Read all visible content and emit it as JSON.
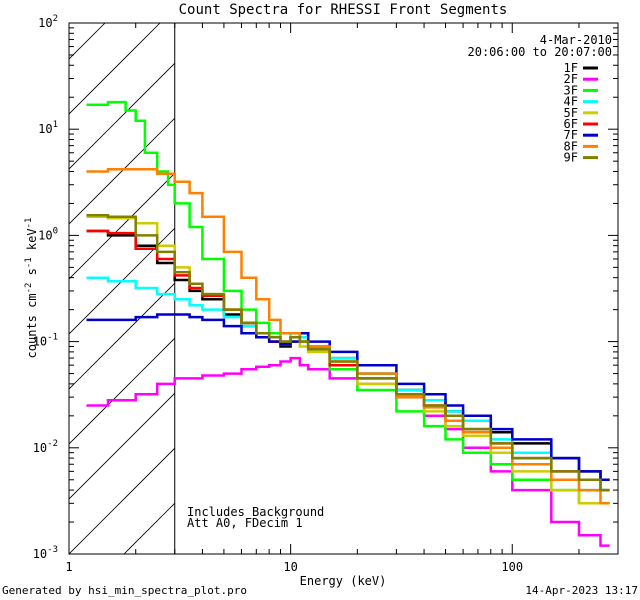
{
  "chart_data": {
    "type": "line",
    "title": "Count Spectra for RHESSI Front Segments",
    "xlabel": "Energy (keV)",
    "ylabel": "counts cm^-2 s^-1 keV^-1",
    "ylabel_parts": [
      "counts cm",
      "-2",
      " s",
      "-1",
      " keV",
      "-1"
    ],
    "x_scale": "log",
    "y_scale": "log",
    "xlim": [
      1,
      300
    ],
    "ylim": [
      0.001,
      100
    ],
    "x_ticks": [
      {
        "value": 1,
        "label": "1"
      },
      {
        "value": 10,
        "label": "10"
      },
      {
        "value": 100,
        "label": "100"
      }
    ],
    "y_ticks": [
      {
        "value": 100,
        "base": "10",
        "exp": "2"
      },
      {
        "value": 10,
        "base": "10",
        "exp": "1"
      },
      {
        "value": 1,
        "base": "10",
        "exp": "0"
      },
      {
        "value": 0.1,
        "base": "10",
        "exp": "-1"
      },
      {
        "value": 0.01,
        "base": "10",
        "exp": "-2"
      },
      {
        "value": 0.001,
        "base": "10",
        "exp": "-3"
      }
    ],
    "date_label": "4-Mar-2010",
    "time_range_label": "20:06:00 to 20:07:00",
    "hatched_region_max_kev": 3,
    "annotations": [
      "Includes Background",
      "Att A0, FDecim 1"
    ],
    "series": [
      {
        "name": "1F",
        "color": "#000000",
        "points": [
          [
            1.2,
            1.1
          ],
          [
            1.5,
            1.0
          ],
          [
            2,
            0.8
          ],
          [
            2.5,
            0.55
          ],
          [
            3,
            0.38
          ],
          [
            3.5,
            0.3
          ],
          [
            4,
            0.25
          ],
          [
            5,
            0.18
          ],
          [
            6,
            0.14
          ],
          [
            7,
            0.11
          ],
          [
            8,
            0.1
          ],
          [
            9,
            0.09
          ],
          [
            10,
            0.1
          ],
          [
            11,
            0.12
          ],
          [
            12,
            0.09
          ],
          [
            15,
            0.07
          ],
          [
            20,
            0.05
          ],
          [
            30,
            0.035
          ],
          [
            40,
            0.028
          ],
          [
            50,
            0.022
          ],
          [
            60,
            0.018
          ],
          [
            80,
            0.014
          ],
          [
            100,
            0.011
          ],
          [
            150,
            0.008
          ],
          [
            200,
            0.006
          ],
          [
            250,
            0.005
          ]
        ]
      },
      {
        "name": "2F",
        "color": "#ff00ff",
        "points": [
          [
            1.2,
            0.025
          ],
          [
            1.5,
            0.028
          ],
          [
            2,
            0.032
          ],
          [
            2.5,
            0.04
          ],
          [
            3,
            0.045
          ],
          [
            3.5,
            0.045
          ],
          [
            4,
            0.048
          ],
          [
            5,
            0.05
          ],
          [
            6,
            0.055
          ],
          [
            7,
            0.058
          ],
          [
            8,
            0.06
          ],
          [
            9,
            0.065
          ],
          [
            10,
            0.07
          ],
          [
            11,
            0.06
          ],
          [
            12,
            0.055
          ],
          [
            15,
            0.045
          ],
          [
            20,
            0.04
          ],
          [
            30,
            0.03
          ],
          [
            40,
            0.02
          ],
          [
            50,
            0.015
          ],
          [
            60,
            0.01
          ],
          [
            80,
            0.006
          ],
          [
            100,
            0.004
          ],
          [
            150,
            0.002
          ],
          [
            200,
            0.0015
          ],
          [
            250,
            0.0012
          ]
        ]
      },
      {
        "name": "3F",
        "color": "#00ff00",
        "points": [
          [
            1.2,
            17
          ],
          [
            1.5,
            18
          ],
          [
            1.8,
            15
          ],
          [
            2,
            12
          ],
          [
            2.2,
            6
          ],
          [
            2.5,
            4
          ],
          [
            2.8,
            3
          ],
          [
            3,
            2
          ],
          [
            3.5,
            1.2
          ],
          [
            4,
            0.6
          ],
          [
            5,
            0.3
          ],
          [
            6,
            0.2
          ],
          [
            7,
            0.15
          ],
          [
            8,
            0.12
          ],
          [
            9,
            0.1
          ],
          [
            10,
            0.11
          ],
          [
            11,
            0.1
          ],
          [
            12,
            0.08
          ],
          [
            15,
            0.055
          ],
          [
            20,
            0.035
          ],
          [
            30,
            0.022
          ],
          [
            40,
            0.016
          ],
          [
            50,
            0.012
          ],
          [
            60,
            0.009
          ],
          [
            80,
            0.007
          ],
          [
            100,
            0.005
          ],
          [
            150,
            0.004
          ],
          [
            200,
            0.003
          ],
          [
            250,
            0.003
          ]
        ]
      },
      {
        "name": "4F",
        "color": "#00ffff",
        "points": [
          [
            1.2,
            0.4
          ],
          [
            1.5,
            0.37
          ],
          [
            2,
            0.32
          ],
          [
            2.5,
            0.28
          ],
          [
            3,
            0.25
          ],
          [
            3.5,
            0.22
          ],
          [
            4,
            0.2
          ],
          [
            5,
            0.17
          ],
          [
            6,
            0.14
          ],
          [
            7,
            0.12
          ],
          [
            8,
            0.11
          ],
          [
            9,
            0.1
          ],
          [
            10,
            0.12
          ],
          [
            11,
            0.11
          ],
          [
            12,
            0.09
          ],
          [
            15,
            0.07
          ],
          [
            20,
            0.05
          ],
          [
            30,
            0.035
          ],
          [
            40,
            0.028
          ],
          [
            50,
            0.022
          ],
          [
            60,
            0.018
          ],
          [
            80,
            0.012
          ],
          [
            100,
            0.009
          ],
          [
            150,
            0.006
          ],
          [
            200,
            0.004
          ],
          [
            250,
            0.004
          ]
        ]
      },
      {
        "name": "5F",
        "color": "#cccc00",
        "points": [
          [
            1.2,
            1.5
          ],
          [
            1.5,
            1.45
          ],
          [
            2,
            1.3
          ],
          [
            2.5,
            0.8
          ],
          [
            3,
            0.5
          ],
          [
            3.5,
            0.35
          ],
          [
            4,
            0.28
          ],
          [
            5,
            0.2
          ],
          [
            6,
            0.15
          ],
          [
            7,
            0.12
          ],
          [
            8,
            0.1
          ],
          [
            9,
            0.095
          ],
          [
            10,
            0.1
          ],
          [
            11,
            0.09
          ],
          [
            12,
            0.08
          ],
          [
            15,
            0.06
          ],
          [
            20,
            0.04
          ],
          [
            30,
            0.03
          ],
          [
            40,
            0.022
          ],
          [
            50,
            0.016
          ],
          [
            60,
            0.013
          ],
          [
            80,
            0.009
          ],
          [
            100,
            0.006
          ],
          [
            150,
            0.004
          ],
          [
            200,
            0.003
          ],
          [
            250,
            0.003
          ]
        ]
      },
      {
        "name": "6F",
        "color": "#ff0000",
        "points": [
          [
            1.2,
            1.1
          ],
          [
            1.5,
            1.05
          ],
          [
            2,
            0.75
          ],
          [
            2.5,
            0.6
          ],
          [
            3,
            0.42
          ],
          [
            3.5,
            0.32
          ],
          [
            4,
            0.27
          ],
          [
            5,
            0.2
          ],
          [
            6,
            0.15
          ],
          [
            7,
            0.12
          ],
          [
            8,
            0.1
          ],
          [
            9,
            0.1
          ],
          [
            10,
            0.11
          ],
          [
            11,
            0.1
          ],
          [
            12,
            0.085
          ],
          [
            15,
            0.06
          ],
          [
            20,
            0.045
          ],
          [
            30,
            0.03
          ],
          [
            40,
            0.025
          ],
          [
            50,
            0.02
          ],
          [
            60,
            0.015
          ],
          [
            80,
            0.011
          ],
          [
            100,
            0.008
          ],
          [
            150,
            0.006
          ],
          [
            200,
            0.005
          ],
          [
            250,
            0.004
          ]
        ]
      },
      {
        "name": "7F",
        "color": "#0000cc",
        "points": [
          [
            1.2,
            0.16
          ],
          [
            1.5,
            0.16
          ],
          [
            2,
            0.17
          ],
          [
            2.5,
            0.18
          ],
          [
            3,
            0.18
          ],
          [
            3.5,
            0.17
          ],
          [
            4,
            0.16
          ],
          [
            5,
            0.14
          ],
          [
            6,
            0.12
          ],
          [
            7,
            0.11
          ],
          [
            8,
            0.1
          ],
          [
            9,
            0.095
          ],
          [
            10,
            0.1
          ],
          [
            11,
            0.12
          ],
          [
            12,
            0.1
          ],
          [
            15,
            0.08
          ],
          [
            20,
            0.06
          ],
          [
            30,
            0.04
          ],
          [
            40,
            0.032
          ],
          [
            50,
            0.025
          ],
          [
            60,
            0.02
          ],
          [
            80,
            0.015
          ],
          [
            100,
            0.012
          ],
          [
            150,
            0.008
          ],
          [
            200,
            0.006
          ],
          [
            250,
            0.005
          ]
        ]
      },
      {
        "name": "8F",
        "color": "#ff8000",
        "points": [
          [
            1.2,
            4
          ],
          [
            1.5,
            4.2
          ],
          [
            2,
            4.2
          ],
          [
            2.5,
            3.8
          ],
          [
            3,
            3.2
          ],
          [
            3.5,
            2.5
          ],
          [
            4,
            1.5
          ],
          [
            5,
            0.7
          ],
          [
            6,
            0.4
          ],
          [
            7,
            0.25
          ],
          [
            8,
            0.16
          ],
          [
            9,
            0.12
          ],
          [
            10,
            0.12
          ],
          [
            11,
            0.1
          ],
          [
            12,
            0.09
          ],
          [
            15,
            0.065
          ],
          [
            20,
            0.05
          ],
          [
            30,
            0.03
          ],
          [
            40,
            0.024
          ],
          [
            50,
            0.018
          ],
          [
            60,
            0.014
          ],
          [
            80,
            0.01
          ],
          [
            100,
            0.007
          ],
          [
            150,
            0.005
          ],
          [
            200,
            0.004
          ],
          [
            250,
            0.003
          ]
        ]
      },
      {
        "name": "9F",
        "color": "#808000",
        "points": [
          [
            1.2,
            1.55
          ],
          [
            1.5,
            1.5
          ],
          [
            2,
            1.0
          ],
          [
            2.5,
            0.7
          ],
          [
            3,
            0.45
          ],
          [
            3.5,
            0.35
          ],
          [
            4,
            0.28
          ],
          [
            5,
            0.2
          ],
          [
            6,
            0.15
          ],
          [
            7,
            0.12
          ],
          [
            8,
            0.11
          ],
          [
            9,
            0.1
          ],
          [
            10,
            0.11
          ],
          [
            11,
            0.1
          ],
          [
            12,
            0.085
          ],
          [
            15,
            0.065
          ],
          [
            20,
            0.045
          ],
          [
            30,
            0.032
          ],
          [
            40,
            0.025
          ],
          [
            50,
            0.02
          ],
          [
            60,
            0.015
          ],
          [
            80,
            0.011
          ],
          [
            100,
            0.008
          ],
          [
            150,
            0.006
          ],
          [
            200,
            0.005
          ],
          [
            250,
            0.004
          ]
        ]
      }
    ]
  },
  "footer": {
    "left": "Generated by hsi_min_spectra_plot.pro",
    "right": "14-Apr-2023 13:17"
  }
}
